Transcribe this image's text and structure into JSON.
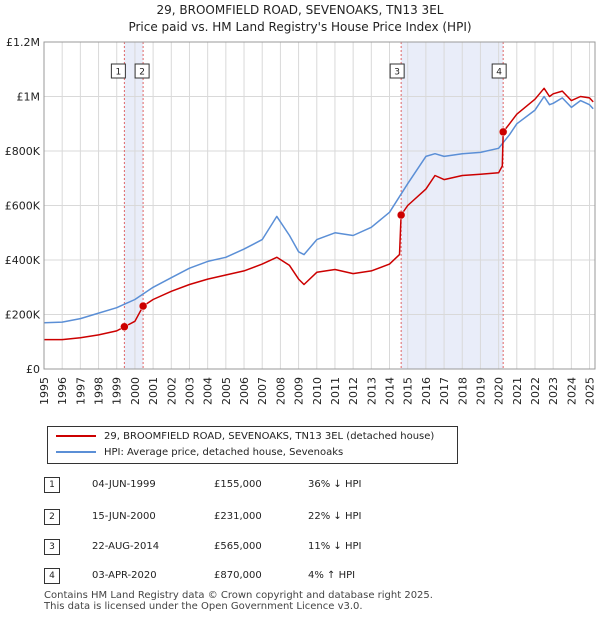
{
  "chart_data": {
    "type": "line",
    "title": "29, BROOMFIELD ROAD, SEVENOAKS, TN13 3EL",
    "subtitle": "Price paid vs. HM Land Registry's House Price Index (HPI)",
    "xlim": [
      1995,
      2025.3
    ],
    "ylim": [
      0,
      1200000
    ],
    "y_ticks": [
      {
        "value": 0,
        "label": "£0"
      },
      {
        "value": 200000,
        "label": "£200K"
      },
      {
        "value": 400000,
        "label": "£400K"
      },
      {
        "value": 600000,
        "label": "£600K"
      },
      {
        "value": 800000,
        "label": "£800K"
      },
      {
        "value": 1000000,
        "label": "£1M"
      },
      {
        "value": 1200000,
        "label": "£1.2M"
      }
    ],
    "x_ticks": [
      "1995",
      "1996",
      "1997",
      "1998",
      "1999",
      "2000",
      "2001",
      "2002",
      "2003",
      "2004",
      "2005",
      "2006",
      "2007",
      "2008",
      "2009",
      "2010",
      "2011",
      "2012",
      "2013",
      "2014",
      "2015",
      "2016",
      "2017",
      "2018",
      "2019",
      "2020",
      "2021",
      "2022",
      "2023",
      "2024",
      "2025"
    ],
    "grid": true,
    "shaded_periods": [
      {
        "from": 1999.42,
        "to": 2000.45
      },
      {
        "from": 2014.64,
        "to": 2020.25
      }
    ],
    "series": [
      {
        "name": "29, BROOMFIELD ROAD, SEVENOAKS, TN13 3EL (detached house)",
        "color": "#cc0000",
        "x": [
          1995.0,
          1996.0,
          1997.0,
          1998.0,
          1999.0,
          1999.42,
          2000.0,
          2000.45,
          2001.0,
          2002.0,
          2003.0,
          2004.0,
          2005.0,
          2006.0,
          2007.0,
          2007.8,
          2008.5,
          2009.0,
          2009.3,
          2010.0,
          2011.0,
          2012.0,
          2013.0,
          2014.0,
          2014.55,
          2014.64,
          2015.0,
          2016.0,
          2016.5,
          2017.0,
          2018.0,
          2019.0,
          2020.0,
          2020.2,
          2020.25,
          2020.6,
          2021.0,
          2022.0,
          2022.5,
          2022.8,
          2023.0,
          2023.5,
          2024.0,
          2024.5,
          2025.0,
          2025.2
        ],
        "values": [
          108000,
          108000,
          115000,
          125000,
          140000,
          155000,
          175000,
          231000,
          255000,
          285000,
          310000,
          330000,
          345000,
          360000,
          385000,
          410000,
          380000,
          330000,
          310000,
          355000,
          365000,
          350000,
          360000,
          385000,
          420000,
          565000,
          600000,
          660000,
          710000,
          695000,
          710000,
          715000,
          720000,
          745000,
          870000,
          900000,
          935000,
          990000,
          1030000,
          1000000,
          1010000,
          1020000,
          985000,
          1000000,
          995000,
          980000
        ]
      },
      {
        "name": "HPI: Average price, detached house, Sevenoaks",
        "color": "#5b8fd6",
        "x": [
          1995.0,
          1996.0,
          1997.0,
          1998.0,
          1999.0,
          2000.0,
          2001.0,
          2002.0,
          2003.0,
          2004.0,
          2005.0,
          2006.0,
          2007.0,
          2007.8,
          2008.5,
          2009.0,
          2009.3,
          2010.0,
          2011.0,
          2012.0,
          2013.0,
          2014.0,
          2015.0,
          2016.0,
          2016.5,
          2017.0,
          2018.0,
          2019.0,
          2020.0,
          2020.6,
          2021.0,
          2022.0,
          2022.5,
          2022.8,
          2023.0,
          2023.5,
          2024.0,
          2024.5,
          2025.0,
          2025.2
        ],
        "values": [
          170000,
          172000,
          185000,
          205000,
          225000,
          255000,
          300000,
          335000,
          370000,
          395000,
          410000,
          440000,
          475000,
          560000,
          490000,
          430000,
          420000,
          475000,
          500000,
          490000,
          520000,
          575000,
          680000,
          780000,
          790000,
          780000,
          790000,
          795000,
          810000,
          860000,
          900000,
          950000,
          1000000,
          970000,
          975000,
          995000,
          960000,
          985000,
          970000,
          955000
        ]
      }
    ],
    "sales": [
      {
        "n": "1",
        "x": 1999.42,
        "value": 155000,
        "date": "04-JUN-1999",
        "price": "£155,000",
        "hpi": "36% ↓ HPI"
      },
      {
        "n": "2",
        "x": 2000.45,
        "value": 231000,
        "date": "15-JUN-2000",
        "price": "£231,000",
        "hpi": "22% ↓ HPI"
      },
      {
        "n": "3",
        "x": 2014.64,
        "value": 565000,
        "date": "22-AUG-2014",
        "price": "£565,000",
        "hpi": "11% ↓ HPI"
      },
      {
        "n": "4",
        "x": 2020.25,
        "value": 870000,
        "date": "03-APR-2020",
        "price": "£870,000",
        "hpi": "4% ↑ HPI"
      }
    ]
  },
  "legend": {
    "property_label": "29, BROOMFIELD ROAD, SEVENOAKS, TN13 3EL (detached house)",
    "hpi_label": "HPI: Average price, detached house, Sevenoaks"
  },
  "footer": {
    "line1": "Contains HM Land Registry data © Crown copyright and database right 2025.",
    "line2": "This data is licensed under the Open Government Licence v3.0."
  }
}
